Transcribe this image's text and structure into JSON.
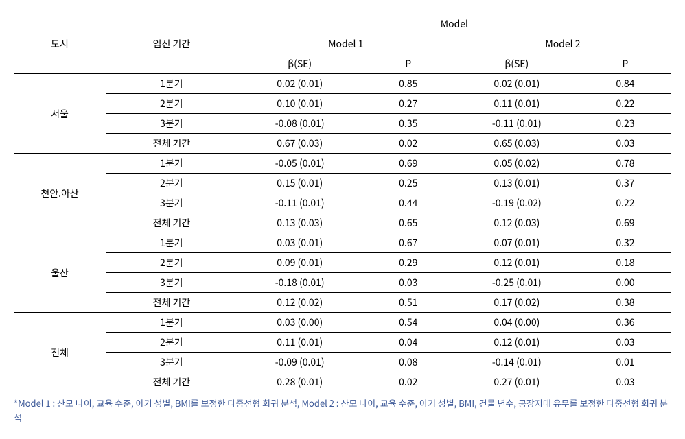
{
  "headers": {
    "city": "도시",
    "period": "임신 기간",
    "model": "Model",
    "model1": "Model 1",
    "model2": "Model 2",
    "beta_se": "β(SE)",
    "p": "P"
  },
  "cities": [
    {
      "name": "서울",
      "rows": [
        {
          "period": "1분기",
          "m1_beta": "0.02 (0.01)",
          "m1_p": "0.85",
          "m2_beta": "0.02 (0.01)",
          "m2_p": "0.84"
        },
        {
          "period": "2분기",
          "m1_beta": "0.10 (0.01)",
          "m1_p": "0.27",
          "m2_beta": "0.11 (0.01)",
          "m2_p": "0.22"
        },
        {
          "period": "3분기",
          "m1_beta": "-0.08 (0.01)",
          "m1_p": "0.35",
          "m2_beta": "-0.11 (0.01)",
          "m2_p": "0.23"
        },
        {
          "period": "전체 기간",
          "m1_beta": "0.67 (0.03)",
          "m1_p": "0.02",
          "m2_beta": "0.65 (0.03)",
          "m2_p": "0.03"
        }
      ]
    },
    {
      "name": "천안.아산",
      "rows": [
        {
          "period": "1분기",
          "m1_beta": "-0.05 (0.01)",
          "m1_p": "0.69",
          "m2_beta": "0.05 (0.02)",
          "m2_p": "0.78"
        },
        {
          "period": "2분기",
          "m1_beta": "0.15 (0.01)",
          "m1_p": "0.25",
          "m2_beta": "0.13 (0.01)",
          "m2_p": "0.37"
        },
        {
          "period": "3분기",
          "m1_beta": "-0.11 (0.01)",
          "m1_p": "0.44",
          "m2_beta": "-0.19 (0.02)",
          "m2_p": "0.22"
        },
        {
          "period": "전체 기간",
          "m1_beta": "0.13 (0.03)",
          "m1_p": "0.65",
          "m2_beta": "0.12 (0.03)",
          "m2_p": "0.69"
        }
      ]
    },
    {
      "name": "울산",
      "rows": [
        {
          "period": "1분기",
          "m1_beta": "0.03 (0.01)",
          "m1_p": "0.67",
          "m2_beta": "0.07 (0.01)",
          "m2_p": "0.32"
        },
        {
          "period": "2분기",
          "m1_beta": "0.09 (0.01)",
          "m1_p": "0.29",
          "m2_beta": "0.12 (0.01)",
          "m2_p": "0.18"
        },
        {
          "period": "3분기",
          "m1_beta": "-0.18 (0.01)",
          "m1_p": "0.03",
          "m2_beta": "-0.25 (0.01)",
          "m2_p": "0.00"
        },
        {
          "period": "전체 기간",
          "m1_beta": "0.12 (0.02)",
          "m1_p": "0.51",
          "m2_beta": "0.17 (0.02)",
          "m2_p": "0.38"
        }
      ]
    },
    {
      "name": "전체",
      "rows": [
        {
          "period": "1분기",
          "m1_beta": "0.03 (0.00)",
          "m1_p": "0.54",
          "m2_beta": "0.04 (0.00)",
          "m2_p": "0.36"
        },
        {
          "period": "2분기",
          "m1_beta": "0.11 (0.01)",
          "m1_p": "0.04",
          "m2_beta": "0.12 (0.01)",
          "m2_p": "0.03"
        },
        {
          "period": "3분기",
          "m1_beta": "-0.09 (0.01)",
          "m1_p": "0.08",
          "m2_beta": "-0.14 (0.01)",
          "m2_p": "0.01"
        },
        {
          "period": "전체 기간",
          "m1_beta": "0.28 (0.01)",
          "m1_p": "0.02",
          "m2_beta": "0.27 (0.01)",
          "m2_p": "0.03"
        }
      ]
    }
  ],
  "footnote": "*Model 1 : 산모 나이, 교육 수준, 아기 성별, BMI를 보정한 다중선형 회귀 분석, Model 2 : 산모 나이, 교육 수준, 아기 성별, BMI, 건물 년수, 공장지대 유무를 보정한 다중선형 회귀 분석"
}
